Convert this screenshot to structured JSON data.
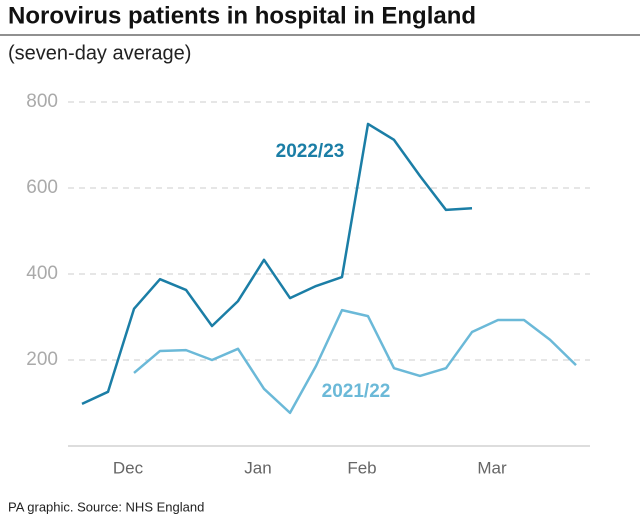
{
  "chart_data": {
    "type": "line",
    "title": "Norovirus patients in hospital in England",
    "subtitle": "(seven-day average)",
    "source": "PA graphic. Source: NHS England",
    "categories": [
      null,
      null,
      "Dec",
      null,
      null,
      null,
      null,
      "Jan",
      null,
      null,
      null,
      "Feb",
      null,
      null,
      null,
      null,
      "Mar",
      null,
      null,
      null
    ],
    "series": [
      {
        "name": "2022/23",
        "color": "#1b7ea6",
        "values": [
          98,
          126,
          319,
          388,
          363,
          279,
          337,
          433,
          344,
          372,
          393,
          749,
          712,
          628,
          549,
          553,
          null,
          null,
          null,
          null
        ]
      },
      {
        "name": "2021/22",
        "color": "#6bb9d8",
        "values": [
          null,
          null,
          170,
          221,
          223,
          200,
          226,
          133,
          77,
          186,
          316,
          302,
          181,
          163,
          181,
          265,
          293,
          293,
          247,
          188
        ]
      }
    ],
    "ylim": [
      0,
      800
    ],
    "yticks": [
      200,
      400,
      600,
      800
    ],
    "grid": true
  }
}
